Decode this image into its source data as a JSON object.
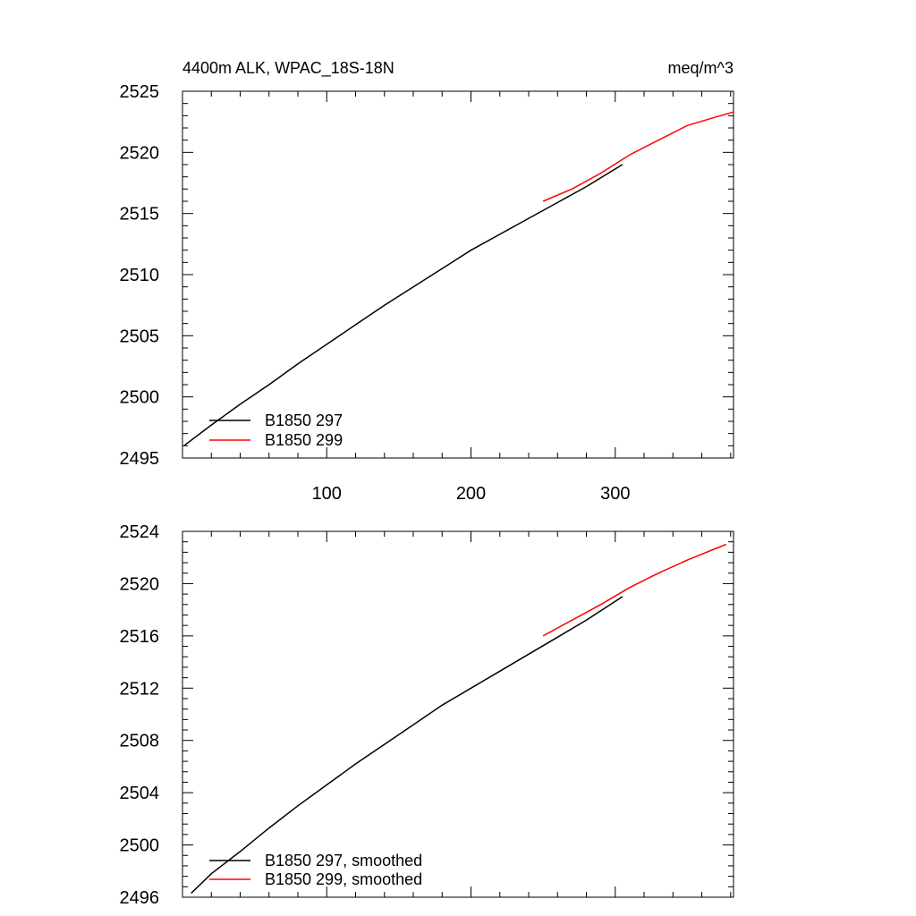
{
  "header": {
    "title": "4400m ALK, WPAC_18S-18N",
    "units": "meq/m^3"
  },
  "chart_data": [
    {
      "type": "line",
      "xlim": [
        0,
        382
      ],
      "ylim": [
        2495,
        2525
      ],
      "xticks": [
        100,
        200,
        300
      ],
      "yticks": [
        2495,
        2500,
        2505,
        2510,
        2515,
        2520,
        2525
      ],
      "legend_position": "bottom-left",
      "series": [
        {
          "name": "B1850 297",
          "color": "#000000",
          "x": [
            1,
            20,
            40,
            60,
            80,
            100,
            120,
            140,
            160,
            180,
            200,
            220,
            240,
            260,
            280,
            305
          ],
          "y": [
            2496.0,
            2497.7,
            2499.4,
            2501.0,
            2502.7,
            2504.3,
            2505.9,
            2507.5,
            2509.0,
            2510.5,
            2512.0,
            2513.3,
            2514.6,
            2515.9,
            2517.2,
            2519.0
          ]
        },
        {
          "name": "B1850 299",
          "color": "#ff0000",
          "x": [
            250,
            270,
            290,
            310,
            330,
            350,
            370,
            382
          ],
          "y": [
            2516.0,
            2517.0,
            2518.3,
            2519.8,
            2521.0,
            2522.2,
            2522.9,
            2523.3
          ]
        }
      ]
    },
    {
      "type": "line",
      "xlim": [
        0,
        382
      ],
      "ylim": [
        2496,
        2524
      ],
      "xticks": [
        100,
        200,
        300
      ],
      "yticks": [
        2496,
        2500,
        2504,
        2508,
        2512,
        2516,
        2520,
        2524
      ],
      "legend_position": "bottom-left",
      "series": [
        {
          "name": "B1850 297, smoothed",
          "color": "#000000",
          "x": [
            6,
            20,
            40,
            60,
            80,
            100,
            120,
            140,
            160,
            180,
            200,
            220,
            240,
            260,
            280,
            305
          ],
          "y": [
            2496.3,
            2497.8,
            2499.5,
            2501.3,
            2503.0,
            2504.6,
            2506.2,
            2507.7,
            2509.2,
            2510.7,
            2512.0,
            2513.3,
            2514.6,
            2515.9,
            2517.2,
            2519.0
          ]
        },
        {
          "name": "B1850 299, smoothed",
          "color": "#ff0000",
          "x": [
            250,
            270,
            290,
            310,
            330,
            350,
            370,
            377
          ],
          "y": [
            2516.0,
            2517.2,
            2518.4,
            2519.7,
            2520.8,
            2521.8,
            2522.7,
            2523.0
          ]
        }
      ]
    }
  ]
}
